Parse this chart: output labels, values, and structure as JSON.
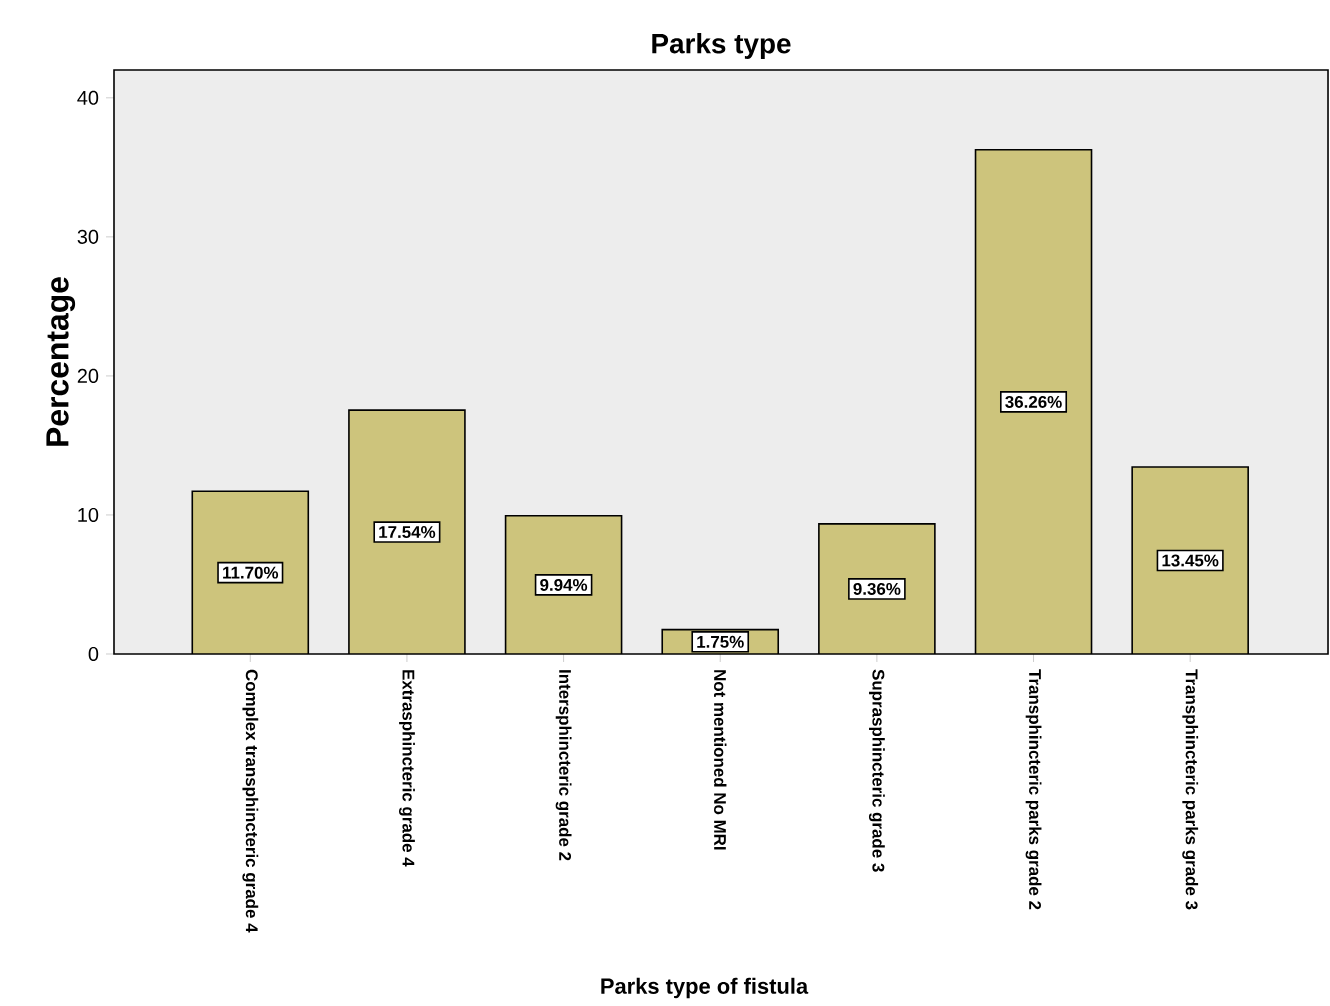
{
  "chart_data": {
    "type": "bar",
    "title": "Parks type",
    "xlabel": "Parks type of fistula",
    "ylabel": "Percentage",
    "categories": [
      "Complex transphincteric grade 4",
      "Extrasphincteric grade 4",
      "Intersphincteric grade 2",
      "Not mentioned No MRI",
      "Suprasphincteric grade 3",
      "Transphincteric parks grade 2",
      "Transphincteric parks grade 3"
    ],
    "values": [
      11.7,
      17.54,
      9.94,
      1.75,
      9.36,
      36.26,
      13.45
    ],
    "value_labels": [
      "11.70%",
      "17.54%",
      "9.94%",
      "1.75%",
      "9.36%",
      "36.26%",
      "13.45%"
    ],
    "color": "#cdc47c",
    "ylim": [
      0,
      42
    ],
    "yticks": [
      0,
      10,
      20,
      30,
      40
    ],
    "grid": false
  }
}
